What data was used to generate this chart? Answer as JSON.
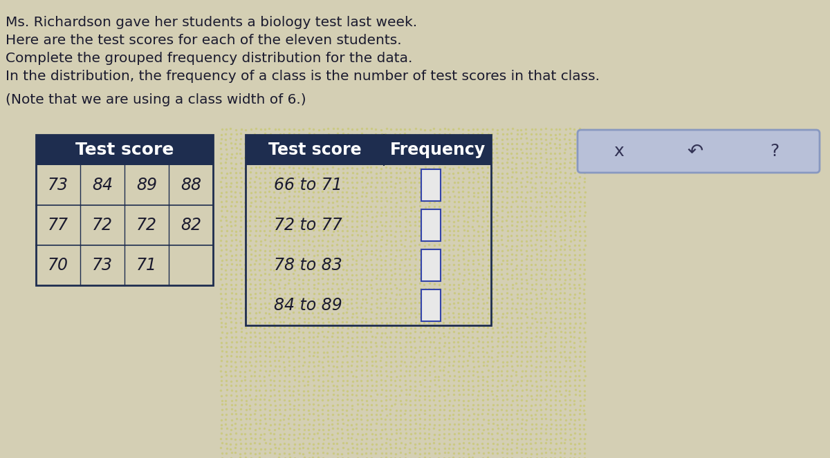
{
  "title_lines": [
    "Ms. Richardson gave her students a biology test last week.",
    "Here are the test scores for each of the eleven students.",
    "Complete the grouped frequency distribution for the data.",
    "In the distribution, the frequency of a class is the number of test scores in that class.",
    "(Note that we are using a class width of 6.)"
  ],
  "score_table_header": "Test score",
  "score_table_rows": [
    [
      "73",
      "84",
      "89",
      "88"
    ],
    [
      "77",
      "72",
      "72",
      "82"
    ],
    [
      "70",
      "73",
      "71",
      ""
    ]
  ],
  "freq_table_header": [
    "Test score",
    "Frequency"
  ],
  "freq_table_rows": [
    "66 to 71",
    "72 to 77",
    "78 to 83",
    "84 to 89"
  ],
  "bg_color": "#d4cfb4",
  "header_bg": "#1e2d4f",
  "header_text_color": "#ffffff",
  "cell_bg": "#d4cfb4",
  "table_border_color": "#1e2d4f",
  "freq_header_bg": "#1e2d4f",
  "freq_bg": "#c8c890",
  "right_box_bg": "#b8c0d8",
  "right_box_border": "#8898c0",
  "input_box_color": "#e8e8e8",
  "input_box_border": "#3344aa",
  "text_color": "#1a1a2e",
  "font_size_title": 14.5,
  "font_size_table": 15,
  "dot_color": "#c8c890"
}
